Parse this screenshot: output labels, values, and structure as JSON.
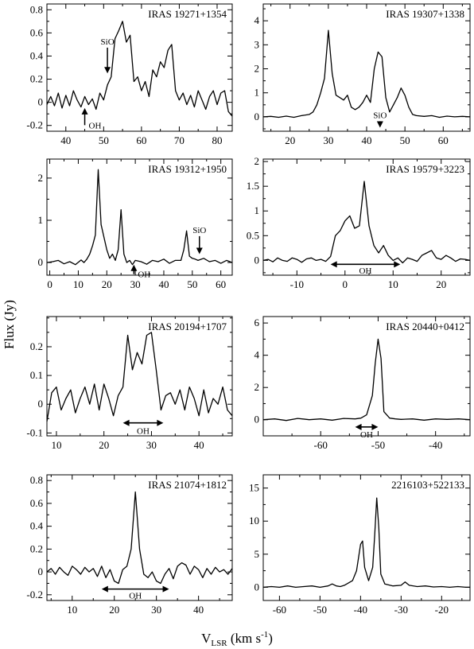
{
  "figure": {
    "ylabel": "Flux (Jy)",
    "xlabel_main": "V",
    "xlabel_sub": "LSR",
    "xlabel_unit_pre": " (km s",
    "xlabel_unit_sup": "-1",
    "xlabel_unit_post": ")"
  },
  "chart_data": [
    {
      "type": "line",
      "title": "IRAS 19271+1354",
      "xlim": [
        35,
        84
      ],
      "ylim": [
        -0.25,
        0.85
      ],
      "xticks": [
        40,
        50,
        60,
        70,
        80
      ],
      "yticks": [
        -0.2,
        0,
        0.2,
        0.4,
        0.6,
        0.8
      ],
      "ytick_labels": [
        "-0.2",
        "0",
        "0.2",
        "0.4",
        "0.6",
        "0.8"
      ],
      "x": [
        35,
        36,
        37,
        38,
        39,
        40,
        41,
        42,
        43,
        44,
        45,
        46,
        47,
        48,
        49,
        50,
        51,
        52,
        53,
        54,
        55,
        56,
        57,
        58,
        59,
        60,
        61,
        62,
        63,
        64,
        65,
        66,
        67,
        68,
        69,
        70,
        71,
        72,
        73,
        74,
        75,
        76,
        77,
        78,
        79,
        80,
        81,
        82,
        83,
        84
      ],
      "y": [
        -0.02,
        0.05,
        -0.03,
        0.08,
        -0.05,
        0.06,
        -0.03,
        0.1,
        0.02,
        -0.04,
        0.05,
        -0.02,
        0.03,
        -0.06,
        0.08,
        0.02,
        0.15,
        0.22,
        0.55,
        0.62,
        0.7,
        0.52,
        0.58,
        0.18,
        0.22,
        0.1,
        0.18,
        0.05,
        0.28,
        0.22,
        0.35,
        0.3,
        0.45,
        0.5,
        0.1,
        0.02,
        0.08,
        -0.02,
        0.06,
        -0.04,
        0.1,
        0.02,
        -0.06,
        0.05,
        0.1,
        -0.02,
        0.08,
        0.1,
        -0.08,
        -0.12
      ],
      "annotations": [
        {
          "label": "SiO",
          "x": 51,
          "direction": "down",
          "label_y": 0.5,
          "tip_y": 0.25
        },
        {
          "label": "OH",
          "x": 45,
          "direction": "up",
          "label_y": -0.17,
          "tip_y": -0.05
        }
      ]
    },
    {
      "type": "line",
      "title": "IRAS 19307+1338",
      "xlim": [
        13,
        67
      ],
      "ylim": [
        -0.6,
        4.7
      ],
      "xticks": [
        20,
        30,
        40,
        50,
        60
      ],
      "yticks": [
        0,
        1,
        2,
        3,
        4
      ],
      "ytick_labels": [
        "0",
        "1",
        "2",
        "3",
        "4"
      ],
      "x": [
        13,
        15,
        17,
        19,
        21,
        23,
        25,
        26,
        27,
        28,
        29,
        30,
        31,
        32,
        33,
        34,
        35,
        36,
        37,
        38,
        39,
        40,
        41,
        42,
        43,
        44,
        45,
        46,
        47,
        48,
        49,
        50,
        51,
        52,
        53,
        55,
        57,
        59,
        61,
        63,
        65,
        67
      ],
      "y": [
        0,
        0.02,
        -0.02,
        0.03,
        -0.02,
        0.05,
        0.1,
        0.2,
        0.5,
        1.0,
        1.6,
        3.6,
        1.8,
        0.9,
        0.8,
        0.7,
        0.9,
        0.4,
        0.3,
        0.4,
        0.6,
        0.9,
        0.6,
        2.0,
        2.7,
        2.5,
        0.8,
        0.2,
        0.5,
        0.8,
        1.2,
        0.9,
        0.4,
        0.1,
        0.05,
        0.02,
        0.05,
        -0.02,
        0.03,
        0,
        0.02,
        0
      ],
      "annotations": [
        {
          "label": "SiO",
          "x": 43.5,
          "direction": "down",
          "label_y": -0.05,
          "tip_y": -0.45
        }
      ]
    },
    {
      "type": "line",
      "title": "IRAS 19312+1950",
      "xlim": [
        -1,
        64
      ],
      "ylim": [
        -0.3,
        2.45
      ],
      "xticks": [
        0,
        10,
        20,
        30,
        40,
        50,
        60
      ],
      "yticks": [
        0,
        1,
        2
      ],
      "ytick_labels": [
        "0",
        "1",
        "2"
      ],
      "x": [
        -1,
        1,
        3,
        5,
        7,
        9,
        11,
        12,
        13,
        14,
        15,
        16,
        17,
        18,
        19,
        20,
        21,
        22,
        23,
        24,
        25,
        26,
        27,
        28,
        29,
        30,
        32,
        34,
        36,
        38,
        40,
        42,
        44,
        46,
        47,
        48,
        49,
        50,
        51,
        52,
        54,
        56,
        58,
        60,
        62,
        64
      ],
      "y": [
        0,
        0.02,
        0.05,
        -0.03,
        0.02,
        -0.05,
        0.06,
        0,
        0.08,
        0.2,
        0.4,
        0.65,
        2.2,
        0.9,
        0.6,
        0.3,
        0.1,
        0.2,
        0.05,
        0.3,
        1.25,
        0.2,
        0,
        0.05,
        -0.05,
        0.05,
        0.02,
        -0.04,
        0.05,
        0.02,
        0.08,
        -0.02,
        0.05,
        0.05,
        0.3,
        0.75,
        0.15,
        0.1,
        0.08,
        0.05,
        0.1,
        0.02,
        0.05,
        -0.02,
        0.05,
        0
      ],
      "annotations": [
        {
          "label": "SiO",
          "x": 52.5,
          "direction": "down",
          "label_y": 0.7,
          "tip_y": 0.2
        },
        {
          "label": "OH",
          "x": 29.5,
          "direction": "up",
          "label_y": -0.2,
          "tip_y": -0.05
        }
      ]
    },
    {
      "type": "line",
      "title": "IRAS 19579+3223",
      "xlim": [
        -17,
        26
      ],
      "ylim": [
        -0.3,
        2.05
      ],
      "xticks": [
        -10,
        0,
        10,
        20
      ],
      "yticks": [
        0,
        0.5,
        1,
        1.5,
        2
      ],
      "ytick_labels": [
        "0",
        "0.5",
        "1",
        "1.5",
        "2"
      ],
      "x": [
        -17,
        -16,
        -15,
        -14,
        -13,
        -12,
        -11,
        -10,
        -9,
        -8,
        -7,
        -6,
        -5,
        -4,
        -3,
        -2,
        -1,
        0,
        1,
        2,
        3,
        4,
        5,
        6,
        7,
        8,
        9,
        10,
        11,
        12,
        13,
        14,
        15,
        16,
        17,
        18,
        19,
        20,
        21,
        22,
        23,
        24,
        25,
        26
      ],
      "y": [
        0,
        0.02,
        -0.03,
        0.05,
        0,
        -0.02,
        0.05,
        0.02,
        -0.04,
        0.03,
        0.05,
        0,
        0.02,
        -0.02,
        0.08,
        0.5,
        0.6,
        0.8,
        0.9,
        0.65,
        0.7,
        1.6,
        0.7,
        0.3,
        0.15,
        0.3,
        0.1,
        0,
        0.05,
        -0.05,
        0.05,
        0.02,
        -0.02,
        0.1,
        0.15,
        0.2,
        0.05,
        0.02,
        0.1,
        0.05,
        -0.02,
        0.03,
        0.02,
        0
      ],
      "annotations": [
        {
          "label": "OH",
          "type": "range",
          "x0": -3,
          "x1": 11.5,
          "y": -0.08,
          "label_y": -0.2
        }
      ]
    },
    {
      "type": "line",
      "title": "IRAS 20194+1707",
      "xlim": [
        8,
        47
      ],
      "ylim": [
        -0.11,
        0.305
      ],
      "xticks": [
        10,
        20,
        30,
        40
      ],
      "yticks": [
        -0.1,
        0,
        0.1,
        0.2
      ],
      "ytick_labels": [
        "-0.1",
        "0",
        "0.1",
        "0.2"
      ],
      "x": [
        8,
        9,
        10,
        11,
        12,
        13,
        14,
        15,
        16,
        17,
        18,
        19,
        20,
        21,
        22,
        23,
        24,
        25,
        26,
        27,
        28,
        29,
        30,
        31,
        32,
        33,
        34,
        35,
        36,
        37,
        38,
        39,
        40,
        41,
        42,
        43,
        44,
        45,
        46,
        47
      ],
      "y": [
        -0.06,
        0.04,
        0.06,
        -0.02,
        0.02,
        0.05,
        -0.03,
        0.02,
        0.06,
        0.0,
        0.07,
        -0.02,
        0.07,
        0.02,
        -0.04,
        0.03,
        0.06,
        0.24,
        0.12,
        0.18,
        0.14,
        0.24,
        0.25,
        0.12,
        -0.02,
        0.03,
        0.04,
        0.0,
        0.05,
        -0.02,
        0.06,
        0.02,
        -0.04,
        0.05,
        -0.03,
        0.02,
        0.0,
        0.06,
        -0.02,
        -0.04
      ],
      "annotations": [
        {
          "label": "OH",
          "type": "range",
          "x0": 24,
          "x1": 32.5,
          "y": -0.065,
          "label_y": -0.092
        }
      ]
    },
    {
      "type": "line",
      "title": "IRAS 20440+0412",
      "xlim": [
        -70,
        -34
      ],
      "ylim": [
        -1.0,
        6.4
      ],
      "xticks": [
        -60,
        -50,
        -40
      ],
      "yticks": [
        0,
        2,
        4,
        6
      ],
      "ytick_labels": [
        "0",
        "2",
        "4",
        "6"
      ],
      "x": [
        -70,
        -68,
        -66,
        -64,
        -62,
        -60,
        -58,
        -56,
        -54,
        -53,
        -52,
        -51,
        -50.5,
        -50,
        -49.5,
        -49,
        -48,
        -47,
        -46,
        -44,
        -42,
        -40,
        -38,
        -36,
        -34
      ],
      "y": [
        0,
        0.05,
        -0.05,
        0.08,
        0,
        0.05,
        -0.03,
        0.08,
        0.05,
        0.1,
        0.3,
        1.5,
        3.5,
        5.0,
        3.8,
        0.5,
        0.1,
        0.05,
        0.02,
        0.05,
        -0.03,
        0.05,
        0.02,
        0.05,
        0
      ],
      "annotations": [
        {
          "label": "OH",
          "type": "range",
          "x0": -54,
          "x1": -50,
          "y": -0.45,
          "label_y": -0.9
        }
      ]
    },
    {
      "type": "line",
      "title": "IRAS 21074+1812",
      "xlim": [
        4,
        48
      ],
      "ylim": [
        -0.25,
        0.85
      ],
      "xticks": [
        10,
        20,
        30,
        40
      ],
      "yticks": [
        -0.2,
        0,
        0.2,
        0.4,
        0.6,
        0.8
      ],
      "ytick_labels": [
        "-0.2",
        "0",
        "0.2",
        "0.4",
        "0.6",
        "0.8"
      ],
      "x": [
        4,
        5,
        6,
        7,
        8,
        9,
        10,
        11,
        12,
        13,
        14,
        15,
        16,
        17,
        18,
        19,
        20,
        21,
        22,
        23,
        24,
        25,
        26,
        27,
        28,
        29,
        30,
        31,
        32,
        33,
        34,
        35,
        36,
        37,
        38,
        39,
        40,
        41,
        42,
        43,
        44,
        45,
        46,
        47,
        48
      ],
      "y": [
        0.0,
        0.03,
        -0.02,
        0.04,
        0.0,
        -0.03,
        0.05,
        0.02,
        -0.02,
        0.04,
        0.0,
        0.03,
        -0.04,
        0.05,
        -0.05,
        0.02,
        -0.08,
        -0.1,
        0.02,
        0.05,
        0.2,
        0.7,
        0.2,
        -0.02,
        -0.05,
        0.0,
        -0.08,
        -0.1,
        -0.02,
        0.03,
        -0.06,
        0.05,
        0.08,
        0.06,
        -0.02,
        0.05,
        0.02,
        -0.05,
        0.03,
        -0.02,
        0.04,
        0.0,
        0.02,
        -0.02,
        0.03
      ],
      "annotations": [
        {
          "label": "OH",
          "type": "range",
          "x0": 17,
          "x1": 33,
          "y": -0.15,
          "label_y": -0.205
        }
      ]
    },
    {
      "type": "line",
      "title": "2216103+522133",
      "xlim": [
        -64,
        -13
      ],
      "ylim": [
        -2.0,
        17.0
      ],
      "xticks": [
        -60,
        -50,
        -40,
        -30,
        -20
      ],
      "yticks": [
        0,
        5,
        10,
        15
      ],
      "ytick_labels": [
        "0",
        "5",
        "10",
        "15"
      ],
      "x": [
        -64,
        -62,
        -60,
        -58,
        -56,
        -54,
        -52,
        -50,
        -48,
        -47,
        -46,
        -45,
        -44,
        -42,
        -41,
        -40,
        -39.5,
        -39,
        -38,
        -37,
        -36.5,
        -36,
        -35.5,
        -35,
        -34,
        -32,
        -30,
        -29,
        -28,
        -26,
        -24,
        -22,
        -20,
        -18,
        -16,
        -14,
        -13
      ],
      "y": [
        0,
        0.1,
        0,
        0.2,
        0,
        0.1,
        0.2,
        0,
        0.2,
        0.5,
        0.2,
        0.1,
        0.3,
        1.0,
        2.5,
        6.5,
        7.0,
        3.0,
        1.0,
        3.0,
        8.0,
        13.5,
        9.0,
        2.0,
        0.5,
        0.2,
        0.3,
        0.8,
        0.3,
        0.1,
        0.2,
        0.05,
        0.1,
        0,
        0.1,
        0,
        0
      ],
      "annotations": []
    }
  ]
}
